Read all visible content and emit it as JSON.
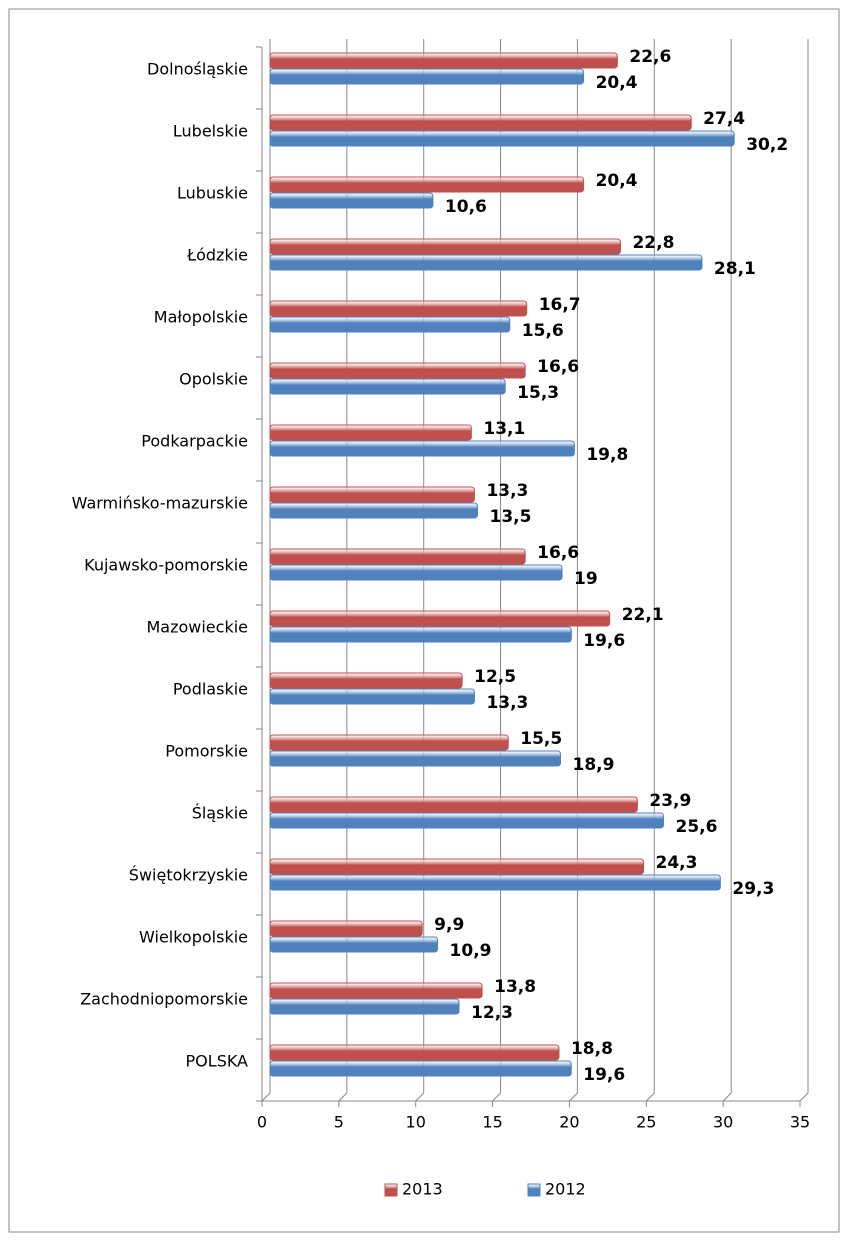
{
  "chart_data": {
    "type": "bar",
    "orientation": "horizontal",
    "categories": [
      "Dolnośląskie",
      "Lubelskie",
      "Lubuskie",
      "Łódzkie",
      "Małopolskie",
      "Opolskie",
      "Podkarpackie",
      "Warmińsko-mazurskie",
      "Kujawsko-pomorskie",
      "Mazowieckie",
      "Podlaskie",
      "Pomorskie",
      "Śląskie",
      "Świętokrzyskie",
      "Wielkopolskie",
      "Zachodniopomorskie",
      "POLSKA"
    ],
    "series": [
      {
        "name": "2013",
        "color": "#c0504d",
        "label_color": "#c0504d",
        "values": [
          22.6,
          27.4,
          20.4,
          22.8,
          16.7,
          16.6,
          13.1,
          13.3,
          16.6,
          22.1,
          12.5,
          15.5,
          23.9,
          24.3,
          9.9,
          13.8,
          18.8
        ],
        "value_labels": [
          "22,6",
          "27,4",
          "20,4",
          "22,8",
          "16,7",
          "16,6",
          "13,1",
          "13,3",
          "16,6",
          "22,1",
          "12,5",
          "15,5",
          "23,9",
          "24,3",
          "9,9",
          "13,8",
          "18,8"
        ]
      },
      {
        "name": "2012",
        "color": "#4f81bd",
        "label_color": "#1f497d",
        "values": [
          20.4,
          30.2,
          10.6,
          28.1,
          15.6,
          15.3,
          19.8,
          13.5,
          19,
          19.6,
          13.3,
          18.9,
          25.6,
          29.3,
          10.9,
          12.3,
          19.6
        ],
        "value_labels": [
          "20,4",
          "30,2",
          "10,6",
          "28,1",
          "15,6",
          "15,3",
          "19,8",
          "13,5",
          "19",
          "19,6",
          "13,3",
          "18,9",
          "25,6",
          "29,3",
          "10,9",
          "12,3",
          "19,6"
        ]
      }
    ],
    "xlim": [
      0,
      35
    ],
    "xticks": [
      0,
      5,
      10,
      15,
      20,
      25,
      30,
      35
    ],
    "grid": true,
    "legend": "bottom"
  }
}
